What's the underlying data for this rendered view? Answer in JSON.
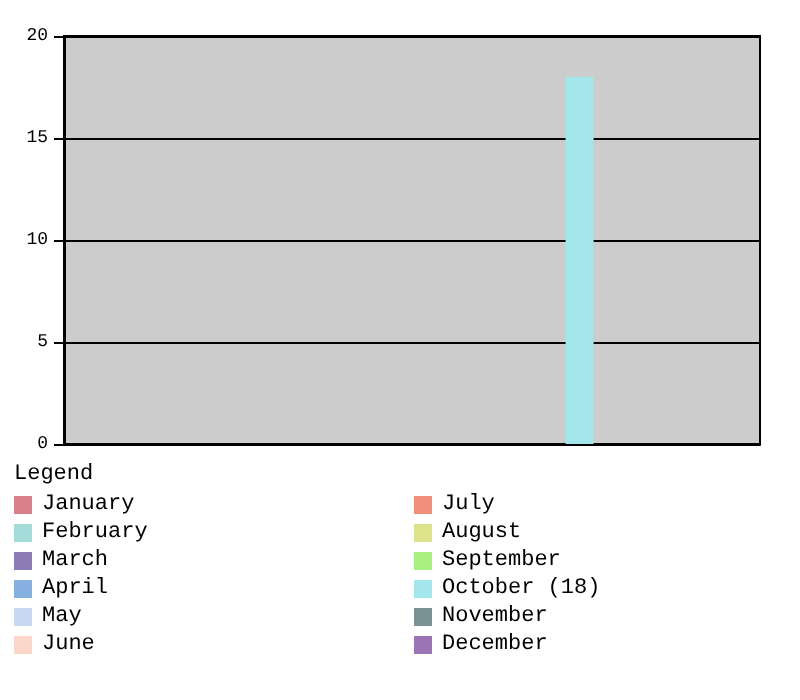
{
  "chart_data": {
    "type": "bar",
    "legend_title": "Legend",
    "categories": [
      null
    ],
    "series": [
      {
        "name": "January",
        "color": "#d97f8a",
        "values": [
          0
        ]
      },
      {
        "name": "February",
        "color": "#a3dcd9",
        "values": [
          0
        ]
      },
      {
        "name": "March",
        "color": "#8a7ab5",
        "values": [
          0
        ]
      },
      {
        "name": "April",
        "color": "#85b0e0",
        "values": [
          0
        ]
      },
      {
        "name": "May",
        "color": "#c7d9f2",
        "values": [
          0
        ]
      },
      {
        "name": "June",
        "color": "#fcd6c9",
        "values": [
          0
        ]
      },
      {
        "name": "July",
        "color": "#f0907a",
        "values": [
          0
        ]
      },
      {
        "name": "August",
        "color": "#dde38a",
        "values": [
          0
        ]
      },
      {
        "name": "September",
        "color": "#a8f07f",
        "values": [
          0
        ]
      },
      {
        "name": "October (18)",
        "color": "#a3e6ec",
        "values": [
          18
        ]
      },
      {
        "name": "November",
        "color": "#7a9394",
        "values": [
          0
        ]
      },
      {
        "name": "December",
        "color": "#9a74b5",
        "values": [
          0
        ]
      }
    ],
    "ylim": [
      0,
      20
    ],
    "yticks": [
      0,
      5,
      10,
      15,
      20
    ],
    "grid": "y",
    "legend": "bottom",
    "tick_labels": "y"
  }
}
